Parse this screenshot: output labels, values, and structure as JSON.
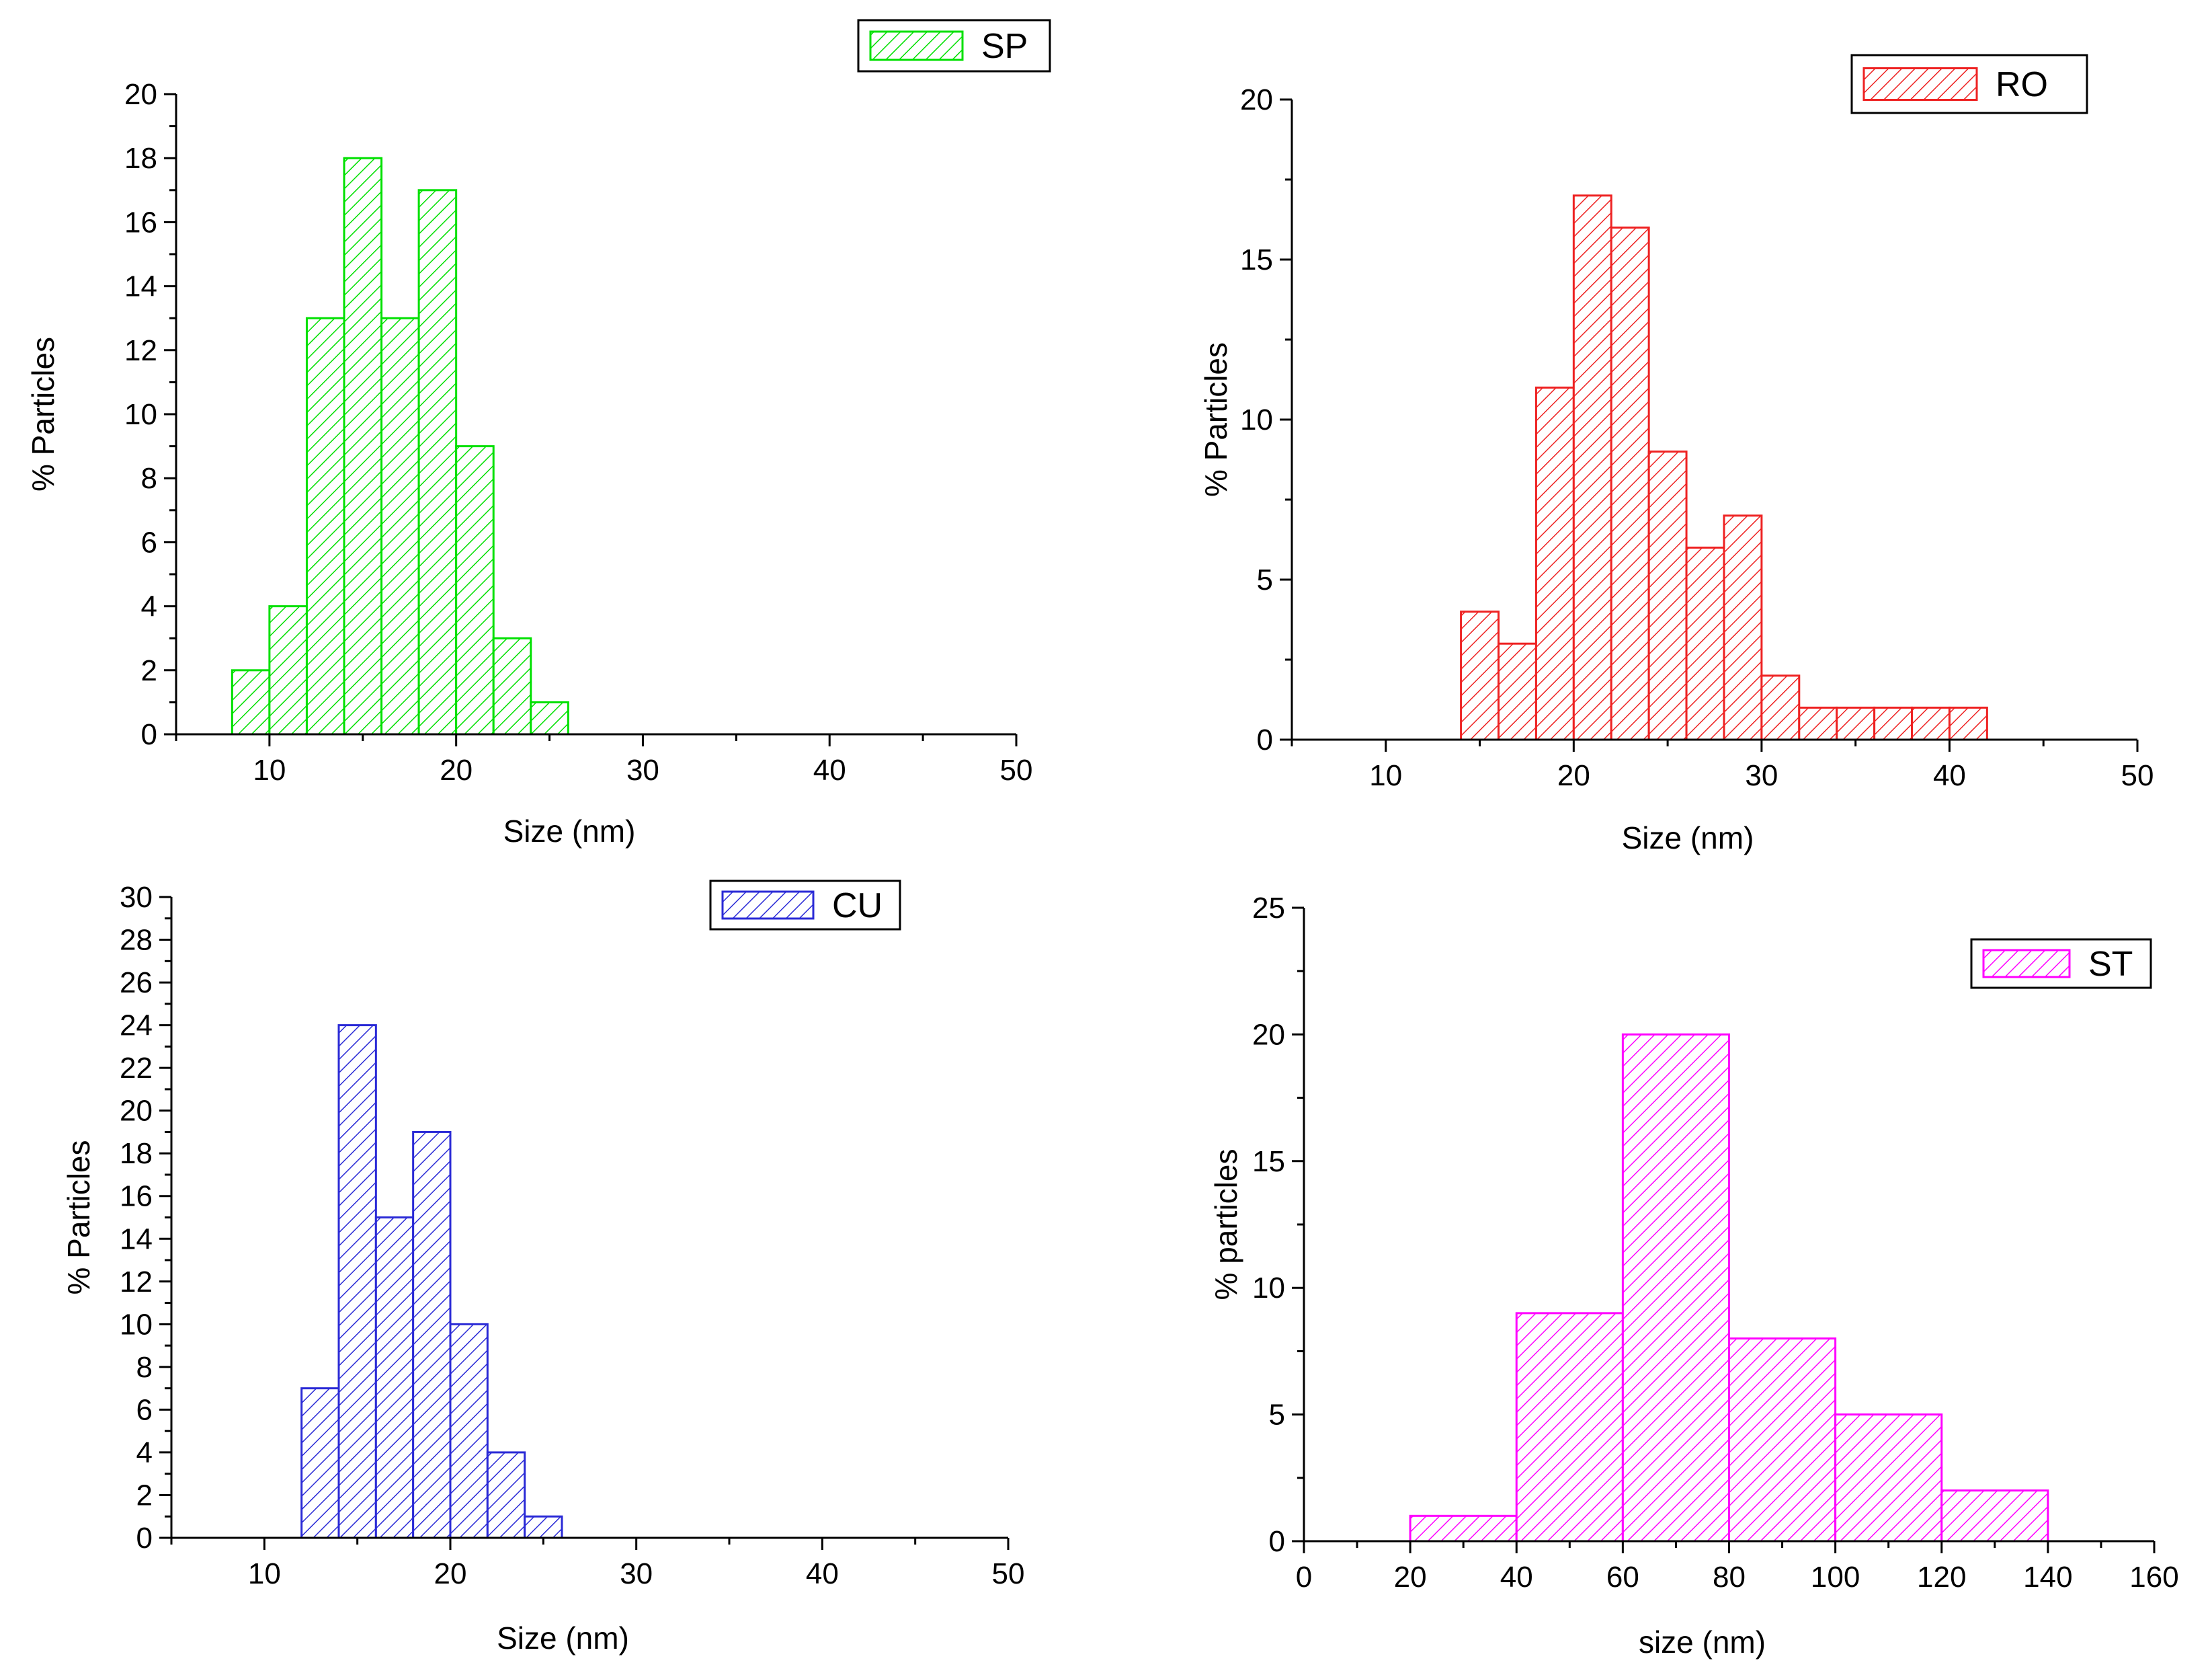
{
  "chart_data": [
    {
      "type": "bar",
      "legend": "SP",
      "legend_position": "top-right",
      "color": "#00e000",
      "xlabel": "Size (nm)",
      "ylabel": "% Particles",
      "xlim": [
        5,
        50
      ],
      "ylim": [
        0,
        20
      ],
      "xticks": [
        10,
        20,
        30,
        40,
        50
      ],
      "yticks": [
        0,
        2,
        4,
        6,
        8,
        10,
        12,
        14,
        16,
        18,
        20
      ],
      "bin_width": 2,
      "bins": [
        {
          "start": 8,
          "end": 10,
          "value": 2
        },
        {
          "start": 10,
          "end": 12,
          "value": 4
        },
        {
          "start": 12,
          "end": 14,
          "value": 13
        },
        {
          "start": 14,
          "end": 16,
          "value": 18
        },
        {
          "start": 16,
          "end": 18,
          "value": 13
        },
        {
          "start": 18,
          "end": 20,
          "value": 17
        },
        {
          "start": 20,
          "end": 22,
          "value": 9
        },
        {
          "start": 22,
          "end": 24,
          "value": 3
        },
        {
          "start": 24,
          "end": 26,
          "value": 1
        }
      ]
    },
    {
      "type": "bar",
      "legend": "RO",
      "legend_position": "top-right",
      "color": "#ee2222",
      "xlabel": "Size (nm)",
      "ylabel": "% Particles",
      "xlim": [
        5,
        50
      ],
      "ylim": [
        0,
        20
      ],
      "xticks": [
        10,
        20,
        30,
        40,
        50
      ],
      "yticks": [
        0,
        5,
        10,
        15,
        20
      ],
      "bin_width": 2,
      "bins": [
        {
          "start": 14,
          "end": 16,
          "value": 4
        },
        {
          "start": 16,
          "end": 18,
          "value": 3
        },
        {
          "start": 18,
          "end": 20,
          "value": 11
        },
        {
          "start": 20,
          "end": 22,
          "value": 17
        },
        {
          "start": 22,
          "end": 24,
          "value": 16
        },
        {
          "start": 24,
          "end": 26,
          "value": 9
        },
        {
          "start": 26,
          "end": 28,
          "value": 6
        },
        {
          "start": 28,
          "end": 30,
          "value": 7
        },
        {
          "start": 30,
          "end": 32,
          "value": 2
        },
        {
          "start": 32,
          "end": 34,
          "value": 1
        },
        {
          "start": 34,
          "end": 36,
          "value": 1
        },
        {
          "start": 36,
          "end": 38,
          "value": 1
        },
        {
          "start": 38,
          "end": 40,
          "value": 1
        },
        {
          "start": 40,
          "end": 42,
          "value": 1
        }
      ]
    },
    {
      "type": "bar",
      "legend": "CU",
      "legend_position": "top-right",
      "color": "#2a2ad6",
      "xlabel": "Size (nm)",
      "ylabel": "% Particles",
      "xlim": [
        5,
        50
      ],
      "ylim": [
        0,
        30
      ],
      "xticks": [
        10,
        20,
        30,
        40,
        50
      ],
      "yticks": [
        0,
        2,
        4,
        6,
        8,
        10,
        12,
        14,
        16,
        18,
        20,
        22,
        24,
        26,
        28,
        30
      ],
      "bin_width": 2,
      "bins": [
        {
          "start": 12,
          "end": 14,
          "value": 7
        },
        {
          "start": 14,
          "end": 16,
          "value": 24
        },
        {
          "start": 16,
          "end": 18,
          "value": 15
        },
        {
          "start": 18,
          "end": 20,
          "value": 19
        },
        {
          "start": 20,
          "end": 22,
          "value": 10
        },
        {
          "start": 22,
          "end": 24,
          "value": 4
        },
        {
          "start": 24,
          "end": 26,
          "value": 1
        }
      ]
    },
    {
      "type": "bar",
      "legend": "ST",
      "legend_position": "top-right",
      "color": "#ff00ff",
      "xlabel": "size (nm)",
      "ylabel": "% particles",
      "xlim": [
        0,
        160
      ],
      "ylim": [
        0,
        25
      ],
      "xticks": [
        0,
        20,
        40,
        60,
        80,
        100,
        120,
        140,
        160
      ],
      "yticks": [
        0,
        5,
        10,
        15,
        20,
        25
      ],
      "bin_width": 20,
      "bins": [
        {
          "start": 20,
          "end": 40,
          "value": 1
        },
        {
          "start": 40,
          "end": 60,
          "value": 9
        },
        {
          "start": 60,
          "end": 80,
          "value": 20
        },
        {
          "start": 80,
          "end": 100,
          "value": 8
        },
        {
          "start": 100,
          "end": 120,
          "value": 5
        },
        {
          "start": 120,
          "end": 140,
          "value": 2
        }
      ]
    }
  ]
}
